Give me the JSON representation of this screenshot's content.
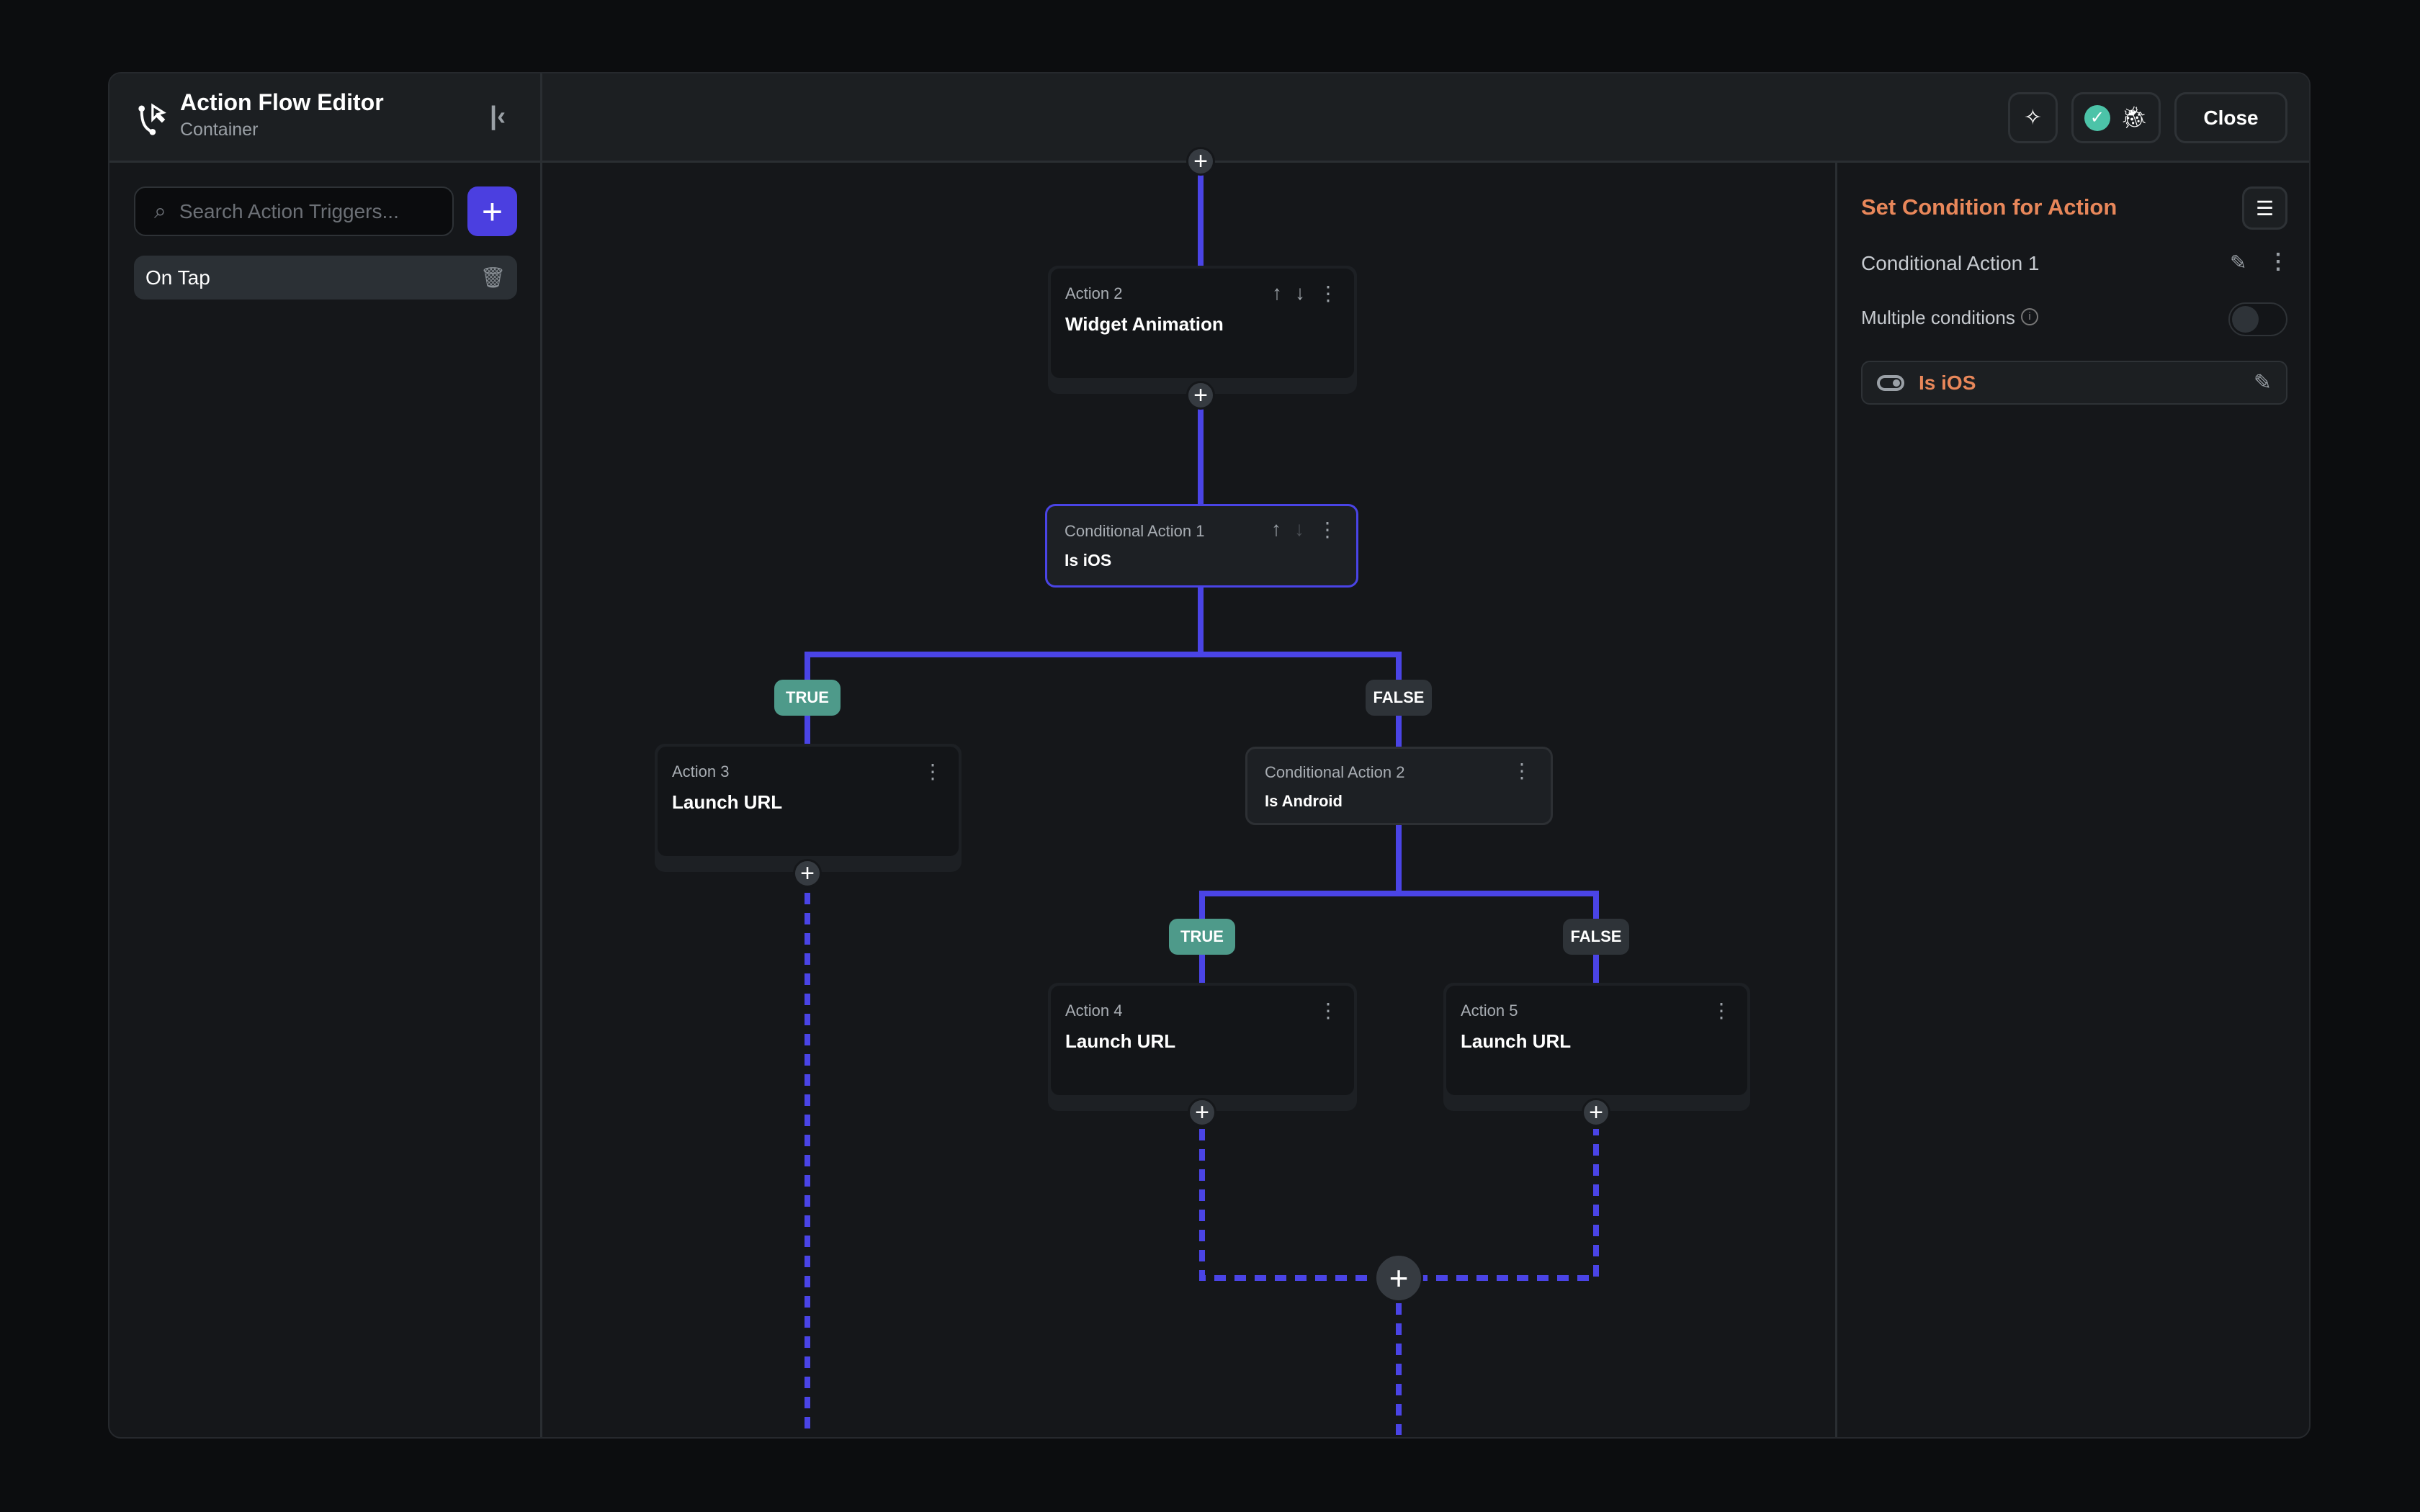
{
  "header": {
    "title": "Action Flow Editor",
    "subtitle": "Container",
    "close_label": "Close"
  },
  "sidebar": {
    "search_placeholder": "Search Action Triggers...",
    "triggers": [
      {
        "label": "On Tap"
      }
    ]
  },
  "flow": {
    "nodes": [
      {
        "label": "Action 2",
        "title": "Widget Animation"
      },
      {
        "label": "Conditional Action 1",
        "title": "Is iOS"
      },
      {
        "label": "Action 3",
        "title": "Launch URL"
      },
      {
        "label": "Conditional Action 2",
        "title": "Is Android"
      },
      {
        "label": "Action 4",
        "title": "Launch URL"
      },
      {
        "label": "Action 5",
        "title": "Launch URL"
      }
    ],
    "true_label": "TRUE",
    "false_label": "FALSE"
  },
  "right_panel": {
    "title": "Set Condition for Action",
    "action_name": "Conditional Action 1",
    "multiple_conditions_label": "Multiple conditions",
    "multiple_conditions_enabled": false,
    "condition": "Is iOS"
  },
  "colors": {
    "accent": "#4b3fe0",
    "line": "#4a44e6",
    "true": "#4e9a8a",
    "false": "#2e3338",
    "orange": "#e8875a",
    "check": "#4cc3a8"
  }
}
